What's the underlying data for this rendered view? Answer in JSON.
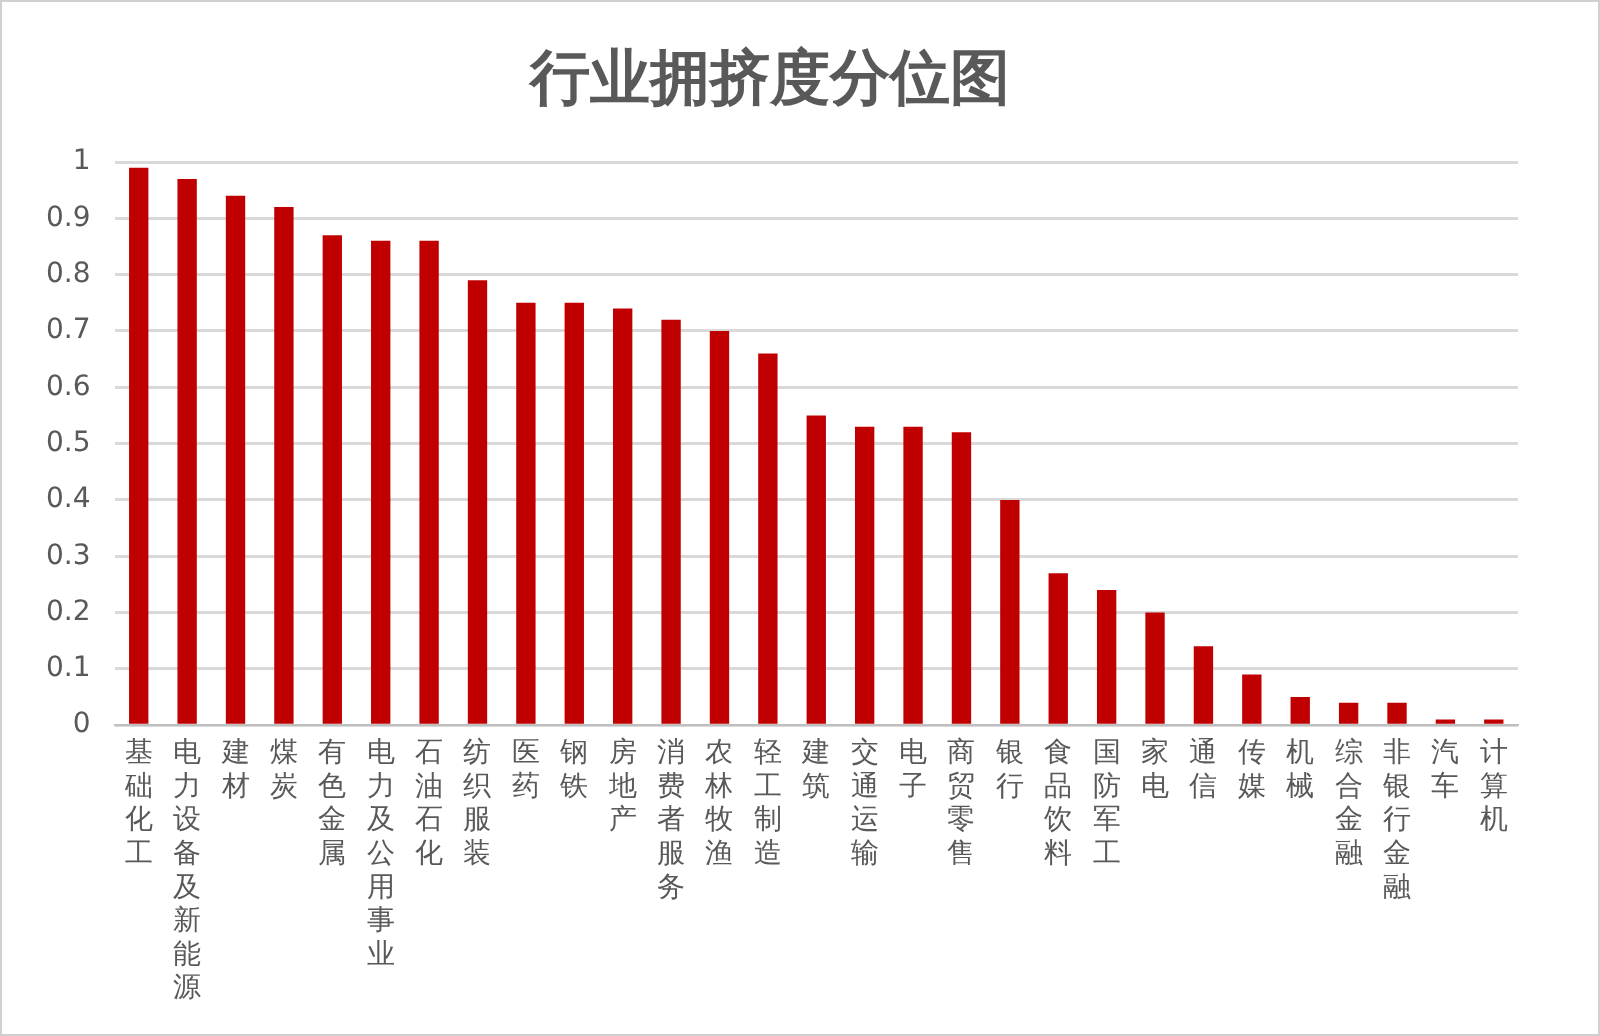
{
  "chart_data": {
    "type": "bar",
    "title": "行业拥挤度分位图",
    "categories": [
      "基础化工",
      "电力设备及新能源",
      "建材",
      "煤炭",
      "有色金属",
      "电力及公用事业",
      "石油石化",
      "纺织服装",
      "医药",
      "钢铁",
      "房地产",
      "消费者服务",
      "农林牧渔",
      "轻工制造",
      "建筑",
      "交通运输",
      "电子",
      "商贸零售",
      "银行",
      "食品饮料",
      "国防军工",
      "家电",
      "通信",
      "传媒",
      "机械",
      "综合金融",
      "非银行金融",
      "汽车",
      "计算机"
    ],
    "values": [
      0.99,
      0.97,
      0.94,
      0.92,
      0.87,
      0.86,
      0.86,
      0.79,
      0.75,
      0.75,
      0.74,
      0.72,
      0.7,
      0.66,
      0.55,
      0.53,
      0.53,
      0.52,
      0.4,
      0.27,
      0.24,
      0.2,
      0.14,
      0.09,
      0.05,
      0.04,
      0.04,
      0.01,
      0.01
    ],
    "color": "#c00000",
    "ylim": [
      0,
      1
    ],
    "yticks": [
      0,
      0.1,
      0.2,
      0.3,
      0.4,
      0.5,
      0.6,
      0.7,
      0.8,
      0.9,
      1
    ],
    "grid": "y",
    "legend": false
  }
}
